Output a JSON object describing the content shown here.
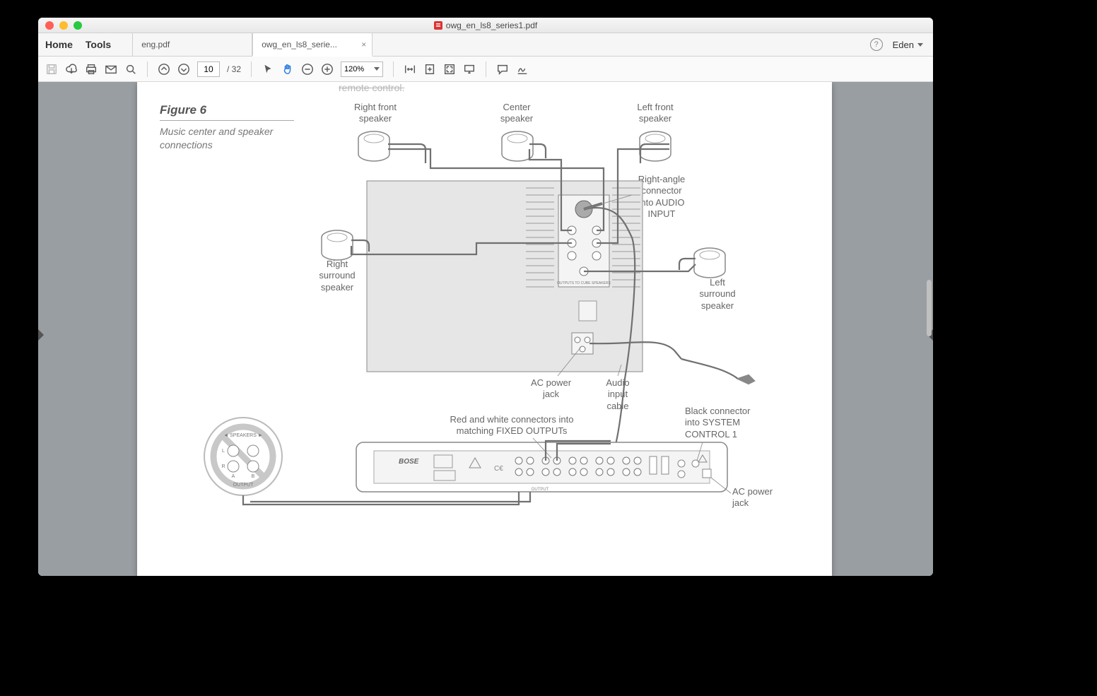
{
  "window": {
    "title": "owg_en_ls8_series1.pdf"
  },
  "menubar": {
    "home": "Home",
    "tools": "Tools",
    "user": "Eden"
  },
  "tabs": [
    {
      "label": "eng.pdf",
      "active": false
    },
    {
      "label": "owg_en_ls8_serie...",
      "active": true
    }
  ],
  "toolbar": {
    "page_current": "10",
    "page_total": "/  32",
    "zoom": "120%"
  },
  "figure": {
    "title": "Figure 6",
    "caption": "Music center and speaker connections",
    "remote_cut": "remote control."
  },
  "diagram_labels": {
    "right_front": "Right front\nspeaker",
    "center_spk": "Center\nspeaker",
    "left_front": "Left front\nspeaker",
    "right_angle": "Right-angle\nconnector\ninto AUDIO\nINPUT",
    "right_surround": "Right\nsurround\nspeaker",
    "left_surround": "Left\nsurround\nspeaker",
    "ac_jack": "AC power\njack",
    "audio_cable": "Audio\ninput\ncable",
    "red_white": "Red and white connectors into\nmatching FIXED OUTPUTs",
    "black_conn": "Black connector\ninto SYSTEM\nCONTROL 1",
    "ac_jack2": "AC power\njack",
    "speakers_txt": "SPEAKERS",
    "output_txt": "OUTPUT",
    "bose": "BOSE"
  },
  "diagram_style": {
    "bg": "#fdfdfd",
    "module_fill": "#e0e0e0",
    "module_stroke": "#888",
    "wire": "#707070",
    "wire_width": 2.2,
    "label_color": "#666",
    "speaker_stroke": "#888",
    "panel_fill": "#f0f0f0",
    "no_circle": "#bbb"
  }
}
